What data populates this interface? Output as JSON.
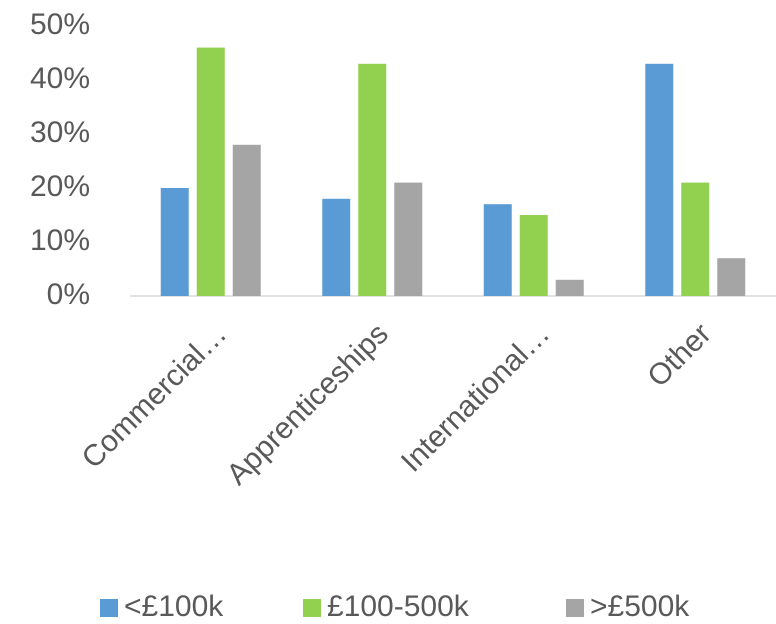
{
  "chart_data": {
    "type": "bar",
    "categories": [
      "Commercial…",
      "Apprenticeships",
      "International…",
      "Other"
    ],
    "series": [
      {
        "name": "<£100k",
        "color": "#5b9bd5",
        "values": [
          20,
          18,
          17,
          43
        ]
      },
      {
        "name": "£100-500k",
        "color": "#92d050",
        "values": [
          46,
          43,
          15,
          21
        ]
      },
      {
        "name": ">£500k",
        "color": "#a5a5a5",
        "values": [
          28,
          21,
          3,
          7
        ]
      }
    ],
    "ylim": [
      0,
      50
    ],
    "yticks": [
      {
        "value": 0,
        "label": "0%"
      },
      {
        "value": 10,
        "label": "10%"
      },
      {
        "value": 20,
        "label": "20%"
      },
      {
        "value": 30,
        "label": "30%"
      },
      {
        "value": 40,
        "label": "40%"
      },
      {
        "value": 50,
        "label": "50%"
      }
    ],
    "grid": false,
    "legend": "bottom"
  }
}
